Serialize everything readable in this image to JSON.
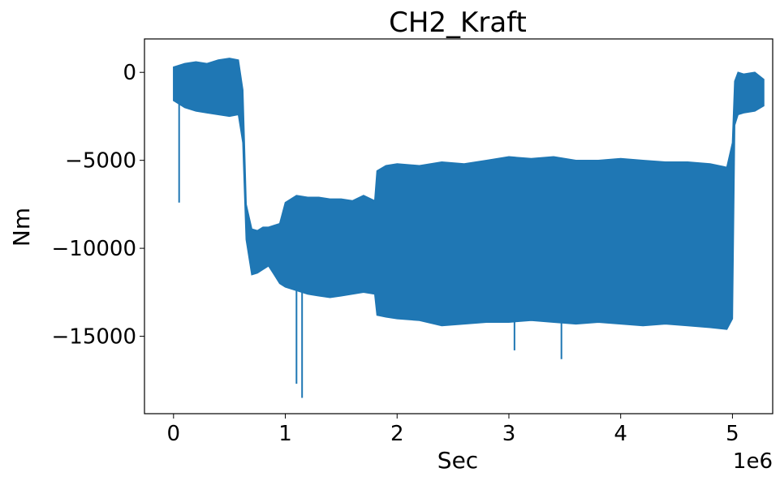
{
  "chart_data": {
    "type": "area",
    "title": "CH2_Kraft",
    "xlabel": "Sec",
    "ylabel": "Nm",
    "x_offset_text": "1e6",
    "xlim": [
      -0.26,
      5.36
    ],
    "ylim": [
      -19400,
      1900
    ],
    "x_ticks": [
      0,
      1,
      2,
      3,
      4,
      5
    ],
    "x_tick_labels": [
      "0",
      "1",
      "2",
      "3",
      "4",
      "5"
    ],
    "y_ticks": [
      0,
      -5000,
      -10000,
      -15000
    ],
    "y_tick_labels": [
      "0",
      "−5000",
      "−10000",
      "−15000"
    ],
    "grid": false,
    "line_color": "#1f77b4",
    "series": [
      {
        "x": [
          0.0,
          0.1,
          0.2,
          0.3,
          0.4,
          0.5,
          0.58,
          0.62,
          0.65,
          0.7,
          0.75,
          0.8,
          0.85,
          0.9,
          0.95,
          1.0,
          1.1,
          1.2,
          1.3,
          1.4,
          1.5,
          1.6,
          1.7,
          1.8,
          1.82,
          1.9,
          2.0,
          2.2,
          2.4,
          2.6,
          2.8,
          3.0,
          3.2,
          3.4,
          3.6,
          3.8,
          4.0,
          4.2,
          4.4,
          4.6,
          4.8,
          4.95,
          5.0,
          5.02,
          5.05,
          5.1,
          5.2,
          5.28
        ],
        "upper": [
          300,
          500,
          600,
          500,
          700,
          800,
          700,
          -1000,
          -7500,
          -8900,
          -9000,
          -8800,
          -8800,
          -8700,
          -8600,
          -7400,
          -7000,
          -7100,
          -7100,
          -7200,
          -7200,
          -7300,
          -7000,
          -7300,
          -5600,
          -5300,
          -5200,
          -5300,
          -5100,
          -5200,
          -5000,
          -4800,
          -4900,
          -4800,
          -5000,
          -5000,
          -4900,
          -5000,
          -5100,
          -5100,
          -5200,
          -5400,
          -4000,
          -500,
          0,
          -100,
          0,
          -400
        ],
        "lower": [
          -1600,
          -2000,
          -2200,
          -2300,
          -2400,
          -2500,
          -2400,
          -4000,
          -9500,
          -11500,
          -11400,
          -11200,
          -11000,
          -11500,
          -12000,
          -12200,
          -12400,
          -12600,
          -12700,
          -12800,
          -12700,
          -12600,
          -12500,
          -12600,
          -13800,
          -13900,
          -14000,
          -14100,
          -14400,
          -14300,
          -14200,
          -14200,
          -14100,
          -14200,
          -14300,
          -14200,
          -14300,
          -14400,
          -14300,
          -14400,
          -14500,
          -14600,
          -14000,
          -3000,
          -2400,
          -2300,
          -2200,
          -1900
        ],
        "spikes": [
          {
            "x": 0.05,
            "y": -7400
          },
          {
            "x": 1.1,
            "y": -17700
          },
          {
            "x": 1.15,
            "y": -18500
          },
          {
            "x": 3.05,
            "y": -15800
          },
          {
            "x": 3.47,
            "y": -16300
          }
        ]
      }
    ]
  }
}
